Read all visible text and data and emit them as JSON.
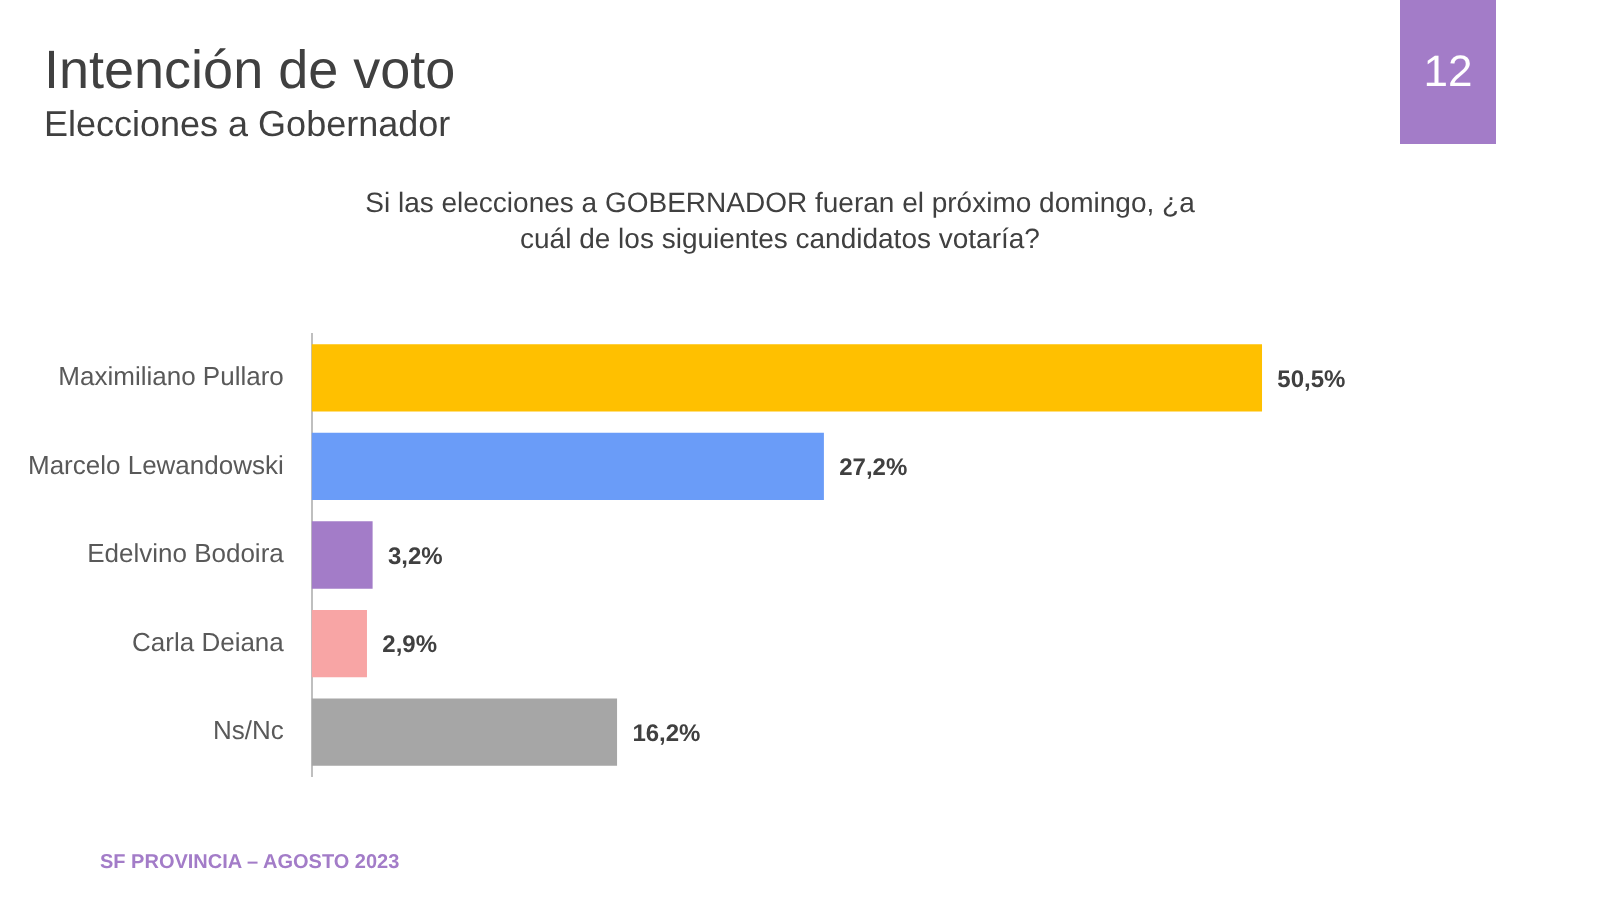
{
  "chart_data": {
    "type": "bar",
    "orientation": "horizontal",
    "title": "Intención de voto",
    "subtitle": "Elecciones a Gobernador",
    "annotations": [
      "Si las elecciones a GOBERNADOR fueran el próximo domingo, ¿a cuál de los siguientes candidatos votaría?",
      "12",
      "SF PROVINCIA – AGOSTO 2023"
    ],
    "categories": [
      "Maximiliano Pullaro",
      "Marcelo Lewandowski",
      "Edelvino Bodoira",
      "Carla Deiana",
      "Ns/Nc"
    ],
    "values": [
      50.5,
      27.2,
      3.2,
      2.9,
      16.2
    ],
    "colors": [
      "#ffc000",
      "#6a9cf8",
      "#a37cc8",
      "#f8a5a5",
      "#a6a6a6"
    ],
    "value_labels": [
      "50,5%",
      "27,2%",
      "3,2%",
      "2,9%",
      "16,2%"
    ],
    "grid": false,
    "legend": false
  }
}
